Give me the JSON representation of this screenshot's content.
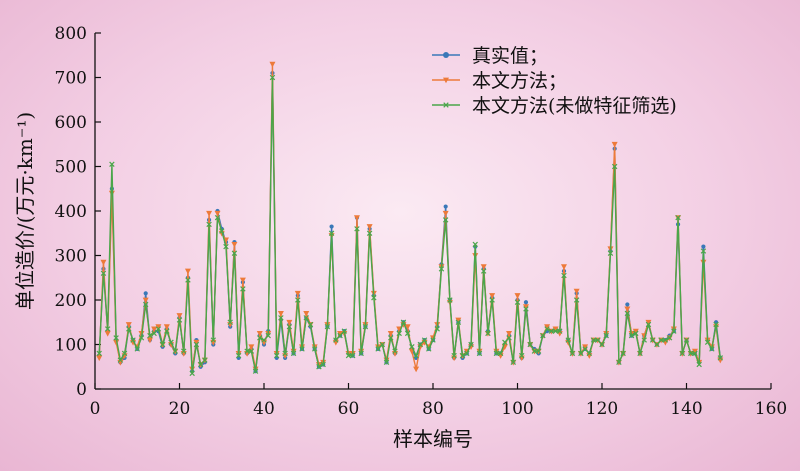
{
  "chart_data": {
    "type": "line",
    "xlabel": "样本编号",
    "ylabel": "单位造价/(万元·km⁻¹)",
    "xlim": [
      0,
      160
    ],
    "ylim": [
      0,
      800
    ],
    "xticks": [
      0,
      20,
      40,
      60,
      80,
      100,
      120,
      140,
      160
    ],
    "yticks": [
      0,
      100,
      200,
      300,
      400,
      500,
      600,
      700,
      800
    ],
    "xtick_labels": [
      "0",
      "20",
      "40",
      "60",
      "80",
      "100",
      "120",
      "140",
      "160"
    ],
    "ytick_labels": [
      "0",
      "100",
      "200",
      "300",
      "400",
      "500",
      "600",
      "700",
      "800"
    ],
    "grid": false,
    "legend_position": "top-right",
    "x": [
      1,
      2,
      3,
      4,
      5,
      6,
      7,
      8,
      9,
      10,
      11,
      12,
      13,
      14,
      15,
      16,
      17,
      18,
      19,
      20,
      21,
      22,
      23,
      24,
      25,
      26,
      27,
      28,
      29,
      30,
      31,
      32,
      33,
      34,
      35,
      36,
      37,
      38,
      39,
      40,
      41,
      42,
      43,
      44,
      45,
      46,
      47,
      48,
      49,
      50,
      51,
      52,
      53,
      54,
      55,
      56,
      57,
      58,
      59,
      60,
      61,
      62,
      63,
      64,
      65,
      66,
      67,
      68,
      69,
      70,
      71,
      72,
      73,
      74,
      75,
      76,
      77,
      78,
      79,
      80,
      81,
      82,
      83,
      84,
      85,
      86,
      87,
      88,
      89,
      90,
      91,
      92,
      93,
      94,
      95,
      96,
      97,
      98,
      99,
      100,
      101,
      102,
      103,
      104,
      105,
      106,
      107,
      108,
      109,
      110,
      111,
      112,
      113,
      114,
      115,
      116,
      117,
      118,
      119,
      120,
      121,
      122,
      123,
      124,
      125,
      126,
      127,
      128,
      129,
      130,
      131,
      132,
      133,
      134,
      135,
      136,
      137,
      138,
      139,
      140,
      141,
      142,
      143,
      144,
      145,
      146,
      147,
      148
    ],
    "series": [
      {
        "name": "真实值；",
        "color": "#3a78b8",
        "marker": "circle",
        "values": [
          75,
          270,
          130,
          450,
          110,
          60,
          70,
          140,
          110,
          90,
          120,
          215,
          110,
          130,
          130,
          95,
          135,
          100,
          80,
          160,
          80,
          250,
          40,
          110,
          50,
          60,
          380,
          100,
          400,
          360,
          330,
          140,
          330,
          70,
          240,
          80,
          90,
          40,
          120,
          100,
          130,
          710,
          70,
          155,
          70,
          145,
          80,
          210,
          90,
          160,
          140,
          90,
          50,
          55,
          140,
          365,
          110,
          120,
          130,
          80,
          75,
          385,
          80,
          140,
          360,
          210,
          90,
          100,
          60,
          120,
          80,
          130,
          150,
          130,
          90,
          70,
          100,
          110,
          90,
          110,
          140,
          280,
          410,
          200,
          70,
          150,
          70,
          80,
          100,
          320,
          80,
          270,
          130,
          205,
          80,
          80,
          100,
          120,
          60,
          200,
          70,
          195,
          100,
          90,
          80,
          120,
          130,
          130,
          135,
          130,
          265,
          110,
          80,
          215,
          80,
          90,
          80,
          110,
          110,
          100,
          120,
          310,
          540,
          60,
          80,
          190,
          120,
          130,
          80,
          120,
          150,
          110,
          100,
          110,
          110,
          120,
          130,
          370,
          80,
          110,
          80,
          80,
          60,
          320,
          110,
          90,
          150,
          70
        ]
      },
      {
        "name": "本文方法；",
        "color": "#ed7a3a",
        "marker": "triangle-down",
        "values": [
          70,
          285,
          125,
          440,
          105,
          60,
          75,
          145,
          105,
          95,
          125,
          200,
          110,
          135,
          140,
          100,
          140,
          100,
          85,
          165,
          80,
          265,
          45,
          105,
          55,
          65,
          395,
          105,
          395,
          350,
          335,
          145,
          325,
          80,
          245,
          80,
          95,
          45,
          125,
          105,
          125,
          730,
          80,
          170,
          75,
          150,
          85,
          215,
          95,
          170,
          145,
          95,
          55,
          60,
          145,
          345,
          105,
          125,
          125,
          80,
          80,
          385,
          85,
          145,
          365,
          215,
          95,
          100,
          65,
          125,
          80,
          135,
          145,
          140,
          85,
          45,
          95,
          105,
          95,
          115,
          145,
          275,
          395,
          195,
          70,
          155,
          75,
          85,
          95,
          300,
          85,
          275,
          125,
          210,
          85,
          75,
          95,
          125,
          60,
          210,
          70,
          185,
          100,
          85,
          85,
          120,
          140,
          130,
          135,
          125,
          275,
          105,
          80,
          220,
          80,
          95,
          75,
          110,
          110,
          100,
          125,
          315,
          550,
          60,
          80,
          180,
          125,
          130,
          80,
          120,
          150,
          110,
          100,
          110,
          105,
          115,
          135,
          385,
          80,
          110,
          80,
          85,
          60,
          285,
          110,
          95,
          140,
          65
        ]
      },
      {
        "name": "本文方法(未做特征筛选)",
        "color": "#4aa64a",
        "marker": "x",
        "values": [
          80,
          260,
          135,
          505,
          115,
          65,
          80,
          135,
          110,
          90,
          115,
          190,
          120,
          125,
          135,
          100,
          130,
          105,
          85,
          155,
          85,
          245,
          35,
          100,
          55,
          65,
          370,
          110,
          385,
          355,
          320,
          150,
          305,
          75,
          225,
          85,
          85,
          40,
          115,
          110,
          120,
          700,
          75,
          160,
          80,
          140,
          80,
          200,
          90,
          160,
          145,
          90,
          50,
          55,
          140,
          350,
          110,
          120,
          130,
          75,
          75,
          360,
          80,
          140,
          350,
          205,
          90,
          100,
          60,
          115,
          85,
          125,
          150,
          125,
          95,
          75,
          100,
          110,
          90,
          110,
          135,
          270,
          380,
          200,
          75,
          150,
          75,
          80,
          100,
          325,
          80,
          265,
          125,
          200,
          80,
          80,
          105,
          115,
          60,
          195,
          75,
          180,
          100,
          85,
          85,
          120,
          135,
          130,
          130,
          130,
          255,
          110,
          80,
          200,
          80,
          90,
          80,
          110,
          110,
          100,
          120,
          305,
          500,
          60,
          80,
          170,
          120,
          125,
          80,
          110,
          145,
          110,
          100,
          110,
          110,
          115,
          130,
          385,
          80,
          110,
          80,
          80,
          55,
          310,
          105,
          90,
          145,
          70
        ]
      }
    ]
  }
}
